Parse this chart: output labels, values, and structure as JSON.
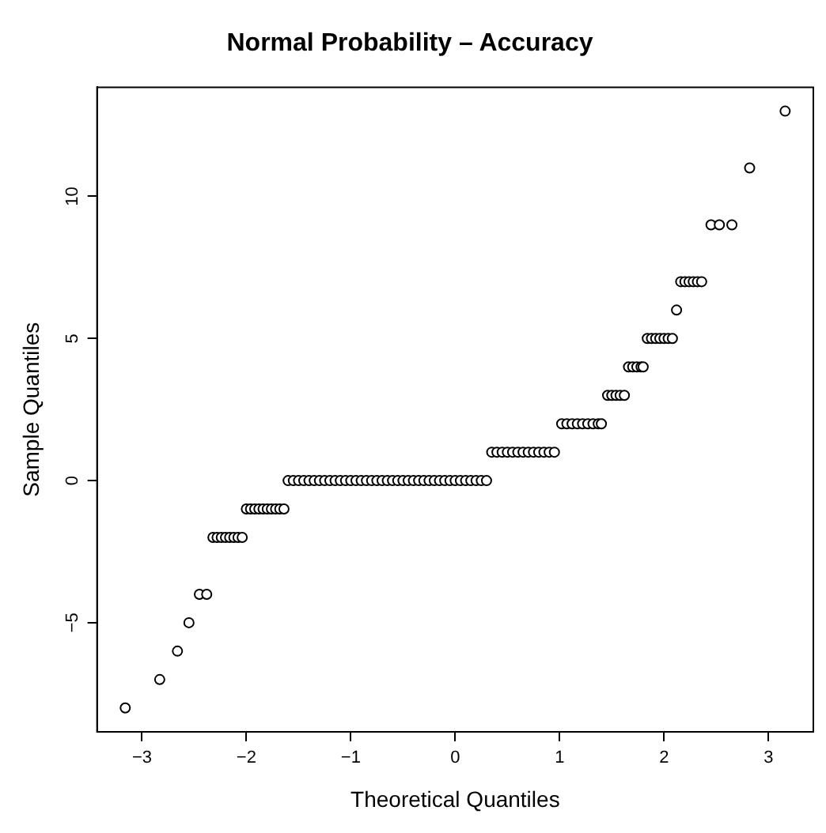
{
  "chart_data": {
    "type": "scatter",
    "title": "Normal Probability – Accuracy",
    "xlabel": "Theoretical Quantiles",
    "ylabel": "Sample Quantiles",
    "xlim": [
      -3.43,
      3.43
    ],
    "ylim": [
      -8.84,
      13.84
    ],
    "xticks": [
      {
        "value": -3,
        "label": "−3"
      },
      {
        "value": -2,
        "label": "−2"
      },
      {
        "value": -1,
        "label": "−1"
      },
      0,
      1,
      2,
      3
    ],
    "yticks": [
      {
        "value": -5,
        "label": "−5"
      },
      0,
      5,
      10
    ],
    "marker": "circle",
    "legend": false,
    "series": [
      {
        "color": "#000000",
        "x": [
          -3.16,
          -2.83,
          -2.66,
          -2.55,
          -2.45,
          -2.38,
          -2.32,
          -2.28,
          -2.24,
          -2.2,
          -2.16,
          -2.12,
          -2.08,
          -2.04,
          -2.0,
          -1.96,
          -1.92,
          -1.88,
          -1.84,
          -1.8,
          -1.76,
          -1.72,
          -1.68,
          -1.64,
          -1.6,
          -1.55,
          -1.5,
          -1.45,
          -1.4,
          -1.35,
          -1.3,
          -1.25,
          -1.2,
          -1.15,
          -1.1,
          -1.05,
          -1.0,
          -0.95,
          -0.9,
          -0.85,
          -0.8,
          -0.75,
          -0.7,
          -0.65,
          -0.6,
          -0.55,
          -0.5,
          -0.45,
          -0.4,
          -0.35,
          -0.3,
          -0.25,
          -0.2,
          -0.15,
          -0.1,
          -0.05,
          0.0,
          0.05,
          0.1,
          0.15,
          0.2,
          0.25,
          0.3,
          0.35,
          0.4,
          0.45,
          0.5,
          0.55,
          0.6,
          0.65,
          0.7,
          0.75,
          0.8,
          0.85,
          0.9,
          0.95,
          1.02,
          1.07,
          1.12,
          1.17,
          1.22,
          1.27,
          1.32,
          1.37,
          1.4,
          1.46,
          1.5,
          1.54,
          1.58,
          1.62,
          1.66,
          1.7,
          1.74,
          1.78,
          1.8,
          1.84,
          1.88,
          1.92,
          1.96,
          2.0,
          2.04,
          2.08,
          2.12,
          2.16,
          2.2,
          2.24,
          2.28,
          2.32,
          2.36,
          2.45,
          2.53,
          2.65,
          2.82,
          3.16
        ],
        "values": [
          -8,
          -7,
          -6,
          -5,
          -4,
          -4,
          -2,
          -2,
          -2,
          -2,
          -2,
          -2,
          -2,
          -2,
          -1,
          -1,
          -1,
          -1,
          -1,
          -1,
          -1,
          -1,
          -1,
          -1,
          0,
          0,
          0,
          0,
          0,
          0,
          0,
          0,
          0,
          0,
          0,
          0,
          0,
          0,
          0,
          0,
          0,
          0,
          0,
          0,
          0,
          0,
          0,
          0,
          0,
          0,
          0,
          0,
          0,
          0,
          0,
          0,
          0,
          0,
          0,
          0,
          0,
          0,
          0,
          1,
          1,
          1,
          1,
          1,
          1,
          1,
          1,
          1,
          1,
          1,
          1,
          1,
          2,
          2,
          2,
          2,
          2,
          2,
          2,
          2,
          2,
          3,
          3,
          3,
          3,
          3,
          4,
          4,
          4,
          4,
          4,
          5,
          5,
          5,
          5,
          5,
          5,
          5,
          6,
          7,
          7,
          7,
          7,
          7,
          7,
          9,
          9,
          9,
          11,
          13
        ]
      }
    ]
  }
}
